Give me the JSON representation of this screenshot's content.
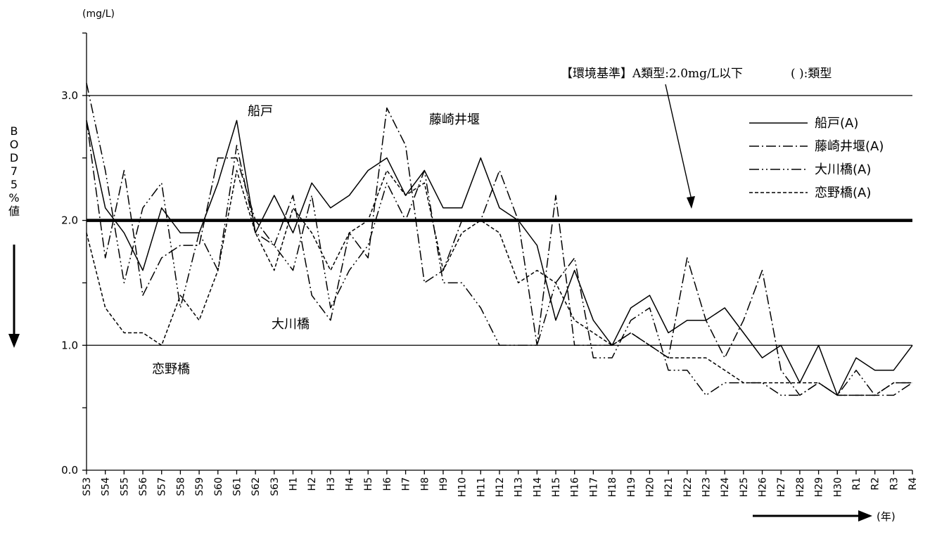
{
  "chart_data": {
    "type": "line",
    "y_unit": "(mg/L)",
    "ylabel": "BOD75%値",
    "x_unit": "(年)",
    "ylim": [
      0,
      3.5
    ],
    "yticks": [
      0,
      0.5,
      1.0,
      1.5,
      2.0,
      2.5,
      3.0,
      3.5
    ],
    "ytick_labels": [
      "0.0",
      "1.0",
      "2.0",
      "3.0"
    ],
    "ytick_label_values": [
      0,
      1,
      2,
      3
    ],
    "categories": [
      "S53",
      "S54",
      "S55",
      "S56",
      "S57",
      "S58",
      "S59",
      "S60",
      "S61",
      "S62",
      "S63",
      "H1",
      "H2",
      "H3",
      "H4",
      "H5",
      "H6",
      "H7",
      "H8",
      "H9",
      "H10",
      "H11",
      "H12",
      "H13",
      "H14",
      "H15",
      "H16",
      "H17",
      "H18",
      "H19",
      "H20",
      "H21",
      "H22",
      "H23",
      "H24",
      "H25",
      "H26",
      "H27",
      "H28",
      "H29",
      "H30",
      "R1",
      "R2",
      "R3",
      "R4"
    ],
    "reference_lines": [
      {
        "value": 3.0,
        "style": "thin"
      },
      {
        "value": 2.0,
        "style": "thick"
      },
      {
        "value": 1.0,
        "style": "thin"
      }
    ],
    "standard_note": "【環境基準】A類型:2.0mg/L以下",
    "type_note": "(  ):類型",
    "annotations": {
      "funato": "船戸",
      "fujisaki": "藤崎井堰",
      "okawa": "大川橋",
      "koino": "恋野橋"
    },
    "legend_position": "top-right",
    "series": [
      {
        "name": "船戸(A)",
        "dash": "solid",
        "values": [
          2.8,
          2.1,
          1.9,
          1.6,
          2.1,
          1.9,
          1.9,
          2.3,
          2.8,
          1.9,
          2.2,
          1.9,
          2.3,
          2.1,
          2.2,
          2.4,
          2.5,
          2.2,
          2.4,
          2.1,
          2.1,
          2.5,
          2.1,
          2.0,
          1.8,
          1.2,
          1.6,
          1.2,
          1.0,
          1.3,
          1.4,
          1.1,
          1.2,
          1.2,
          1.3,
          1.1,
          0.9,
          1.0,
          0.7,
          1.0,
          0.6,
          0.9,
          0.8,
          0.8,
          1.0
        ]
      },
      {
        "name": "藤崎井堰(A)",
        "dash": "dashdot",
        "values": [
          2.8,
          1.7,
          2.4,
          1.4,
          1.7,
          1.8,
          1.8,
          2.5,
          2.5,
          2.0,
          1.8,
          2.2,
          1.4,
          1.2,
          1.9,
          1.7,
          2.9,
          2.6,
          1.5,
          1.6,
          2.0,
          2.0,
          2.4,
          2.0,
          1.0,
          2.2,
          1.0,
          1.0,
          1.0,
          1.1,
          1.0,
          0.9,
          1.7,
          1.2,
          0.9,
          1.2,
          1.6,
          0.8,
          0.6,
          0.7,
          0.6,
          0.6,
          0.6,
          0.6,
          0.7
        ]
      },
      {
        "name": "大川橋(A)",
        "dash": "dashdotdot",
        "values": [
          3.1,
          2.4,
          1.5,
          2.1,
          2.3,
          1.3,
          1.9,
          1.6,
          2.6,
          1.9,
          1.8,
          1.6,
          2.2,
          1.3,
          1.6,
          1.8,
          2.3,
          2.0,
          2.4,
          1.5,
          1.5,
          1.3,
          1.0,
          1.0,
          1.0,
          1.5,
          1.7,
          0.9,
          0.9,
          1.2,
          1.3,
          0.8,
          0.8,
          0.6,
          0.7,
          0.7,
          0.7,
          0.6,
          0.6,
          0.7,
          0.6,
          0.8,
          0.6,
          0.7,
          0.7
        ]
      },
      {
        "name": "恋野橋(A)",
        "dash": "dashed",
        "values": [
          1.9,
          1.3,
          1.1,
          1.1,
          1.0,
          1.4,
          1.2,
          1.6,
          2.4,
          1.9,
          1.6,
          2.1,
          1.9,
          1.6,
          1.9,
          2.0,
          2.4,
          2.2,
          2.3,
          1.6,
          1.9,
          2.0,
          1.9,
          1.5,
          1.6,
          1.5,
          1.2,
          1.1,
          1.0,
          1.1,
          1.0,
          0.9,
          0.9,
          0.9,
          0.8,
          0.7,
          0.7,
          0.7,
          0.7,
          0.7,
          0.6,
          0.6,
          0.6,
          0.7,
          0.7
        ]
      }
    ]
  }
}
